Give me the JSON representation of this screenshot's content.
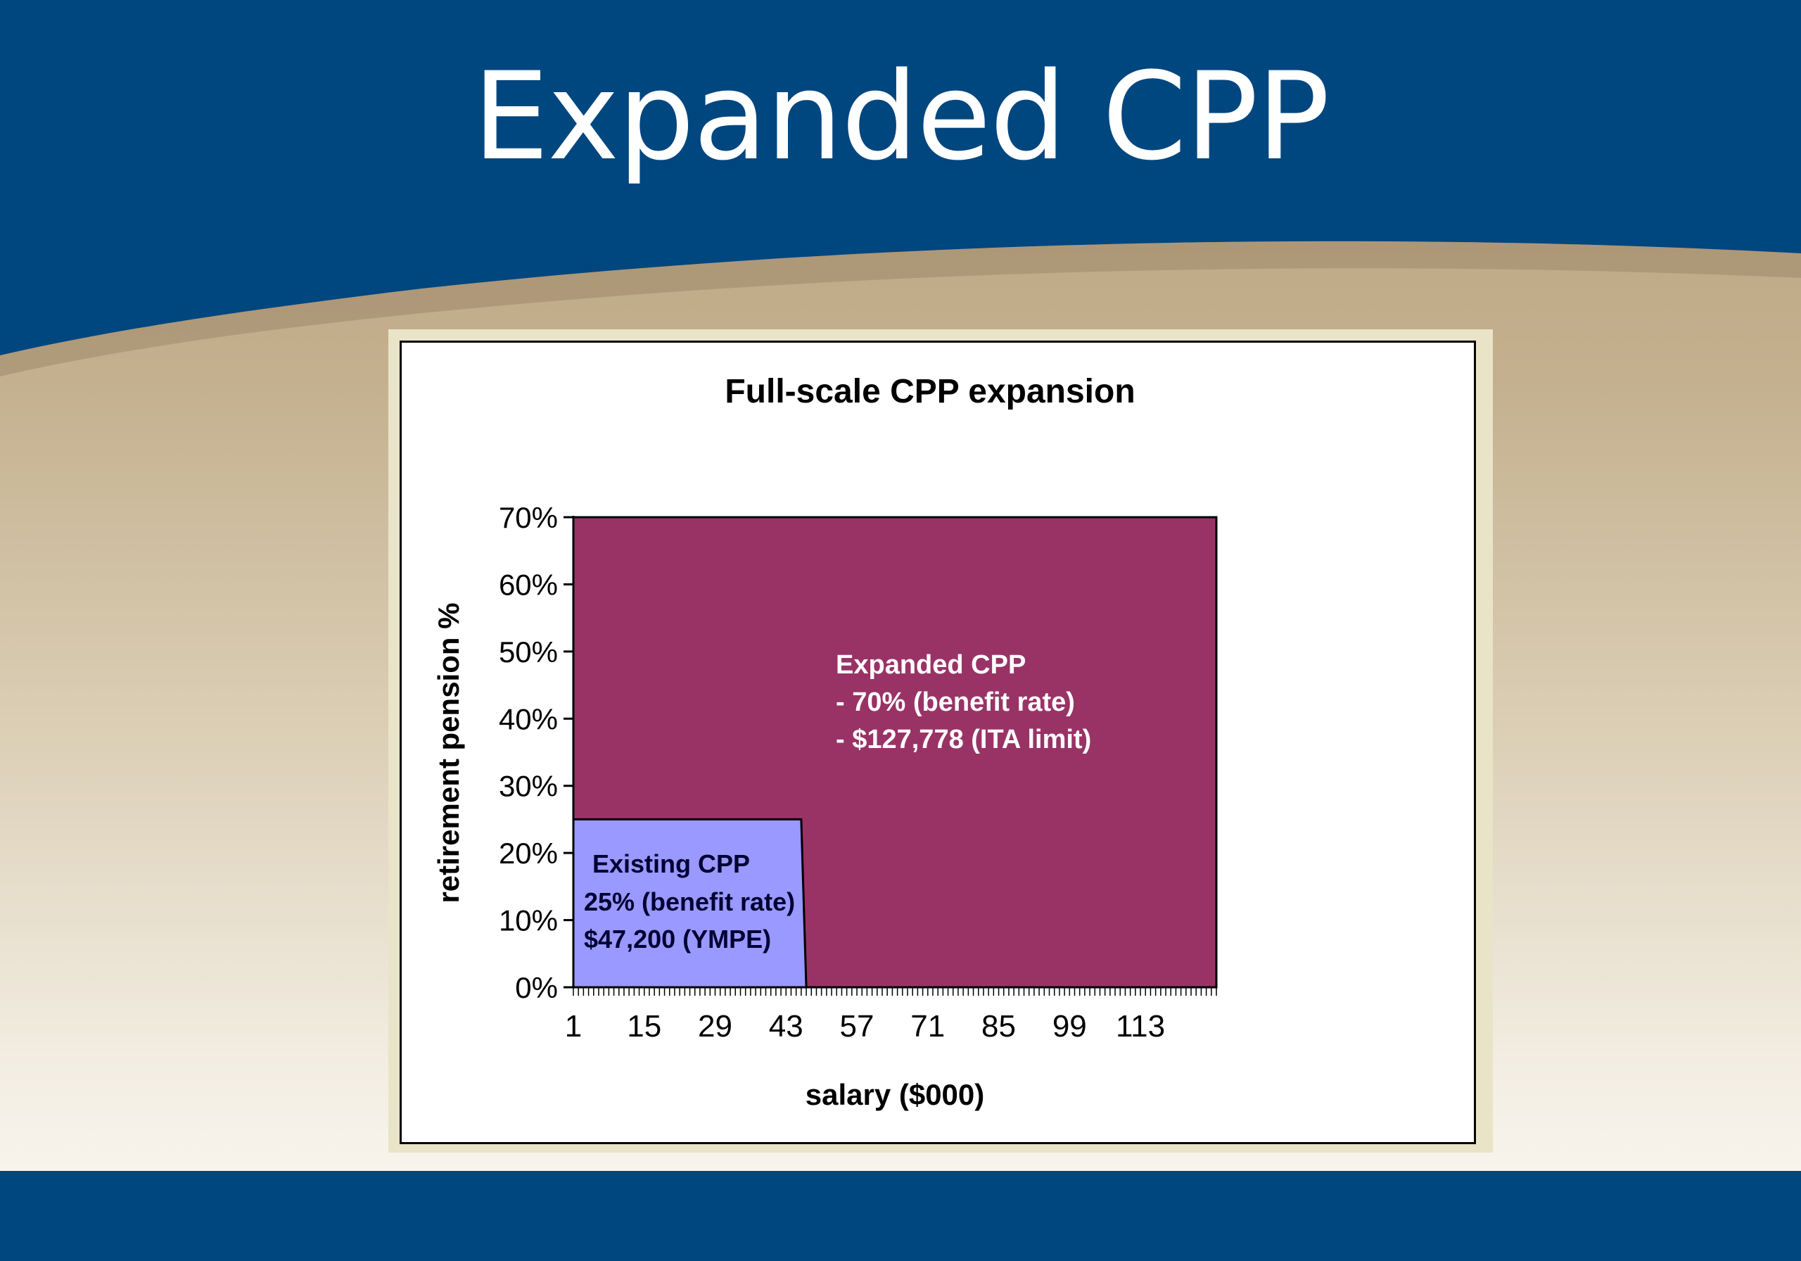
{
  "slide": {
    "title": "Expanded CPP",
    "colors": {
      "header_band": "#00467f",
      "footer_band": "#00467f",
      "title_text": "#ffffff"
    }
  },
  "chart_data": {
    "type": "area",
    "title": "Full-scale CPP expansion",
    "xlabel": "salary ($000)",
    "ylabel": "retirement pension %",
    "x_tick_labels": [
      "1",
      "15",
      "29",
      "43",
      "57",
      "71",
      "85",
      "99",
      "113"
    ],
    "y_tick_labels": [
      "0%",
      "10%",
      "20%",
      "30%",
      "40%",
      "50%",
      "60%",
      "70%"
    ],
    "xlim": [
      1,
      128
    ],
    "ylim": [
      0,
      0.7
    ],
    "grid": false,
    "legend": "none",
    "series": [
      {
        "key": "expanded",
        "color": "#993366",
        "x": [
          1,
          128
        ],
        "y": [
          0.7,
          0.7
        ],
        "annotation": [
          "Expanded CPP",
          "- 70% (benefit rate)",
          "- $127,778 (ITA limit)"
        ]
      },
      {
        "key": "existing",
        "color": "#9999ff",
        "x": [
          1,
          46,
          47
        ],
        "y": [
          0.25,
          0.25,
          0
        ],
        "annotation": [
          "Existing CPP",
          "25% (benefit rate)",
          "$47,200 (YMPE)"
        ]
      }
    ]
  }
}
